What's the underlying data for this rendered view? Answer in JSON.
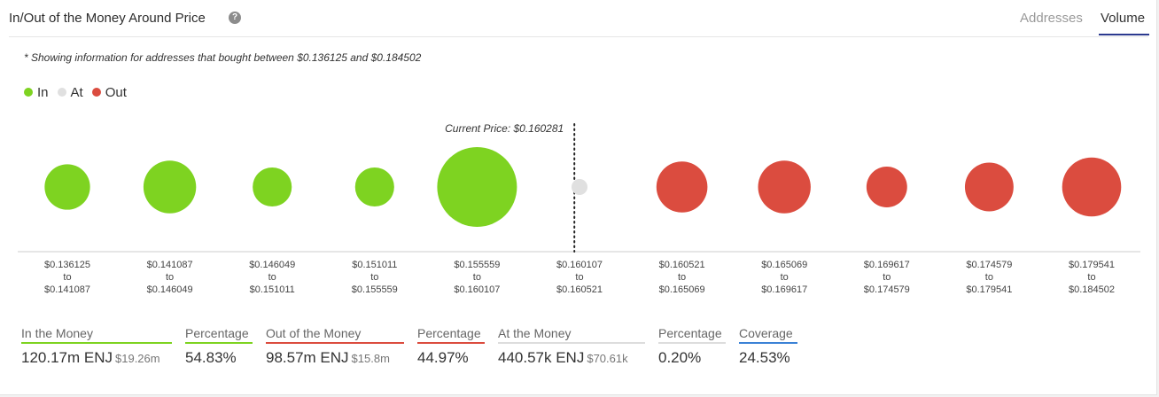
{
  "header": {
    "title": "In/Out of the Money Around Price",
    "help_icon": "question-circle-icon",
    "tabs": [
      {
        "label": "Addresses",
        "active": false
      },
      {
        "label": "Volume",
        "active": true
      }
    ]
  },
  "note": "* Showing information for addresses that bought between $0.136125 and $0.184502",
  "legend": [
    {
      "label": "In",
      "color": "#7ed321"
    },
    {
      "label": "At",
      "color": "#e0e0e0"
    },
    {
      "label": "Out",
      "color": "#db4c3f"
    }
  ],
  "chart_data": {
    "type": "bubble",
    "title": "",
    "current_price_label": "Current Price: $0.160281",
    "current_price_after_category": 5,
    "colors": {
      "in": "#7ed321",
      "at": "#e0e0e0",
      "out": "#db4c3f"
    },
    "buckets": [
      {
        "from": "$0.136125",
        "to": "$0.141087",
        "status": "in",
        "relative_volume": 0.57
      },
      {
        "from": "$0.141087",
        "to": "$0.146049",
        "status": "in",
        "relative_volume": 0.66
      },
      {
        "from": "$0.146049",
        "to": "$0.151011",
        "status": "in",
        "relative_volume": 0.49
      },
      {
        "from": "$0.151011",
        "to": "$0.155559",
        "status": "in",
        "relative_volume": 0.49
      },
      {
        "from": "$0.155559",
        "to": "$0.160107",
        "status": "in",
        "relative_volume": 1.0
      },
      {
        "from": "$0.160107",
        "to": "$0.160521",
        "status": "at",
        "relative_volume": 0.2
      },
      {
        "from": "$0.160521",
        "to": "$0.165069",
        "status": "out",
        "relative_volume": 0.64
      },
      {
        "from": "$0.165069",
        "to": "$0.169617",
        "status": "out",
        "relative_volume": 0.66
      },
      {
        "from": "$0.169617",
        "to": "$0.174579",
        "status": "out",
        "relative_volume": 0.51
      },
      {
        "from": "$0.174579",
        "to": "$0.179541",
        "status": "out",
        "relative_volume": 0.61
      },
      {
        "from": "$0.179541",
        "to": "$0.184502",
        "status": "out",
        "relative_volume": 0.74
      }
    ],
    "to_word": "to"
  },
  "stats": {
    "in_money": {
      "label": "In the Money",
      "value": "120.17m ENJ",
      "sub": "$19.26m",
      "color": "#7ed321"
    },
    "in_pct": {
      "label": "Percentage",
      "value": "54.83%",
      "color": "#7ed321"
    },
    "out_money": {
      "label": "Out of the Money",
      "value": "98.57m ENJ",
      "sub": "$15.8m",
      "color": "#db4c3f"
    },
    "out_pct": {
      "label": "Percentage",
      "value": "44.97%",
      "color": "#db4c3f"
    },
    "at_money": {
      "label": "At the Money",
      "value": "440.57k ENJ",
      "sub": "$70.61k",
      "color": "#dddddd"
    },
    "at_pct": {
      "label": "Percentage",
      "value": "0.20%",
      "color": "#dddddd"
    },
    "coverage": {
      "label": "Coverage",
      "value": "24.53%",
      "color": "#3b82d6"
    }
  }
}
